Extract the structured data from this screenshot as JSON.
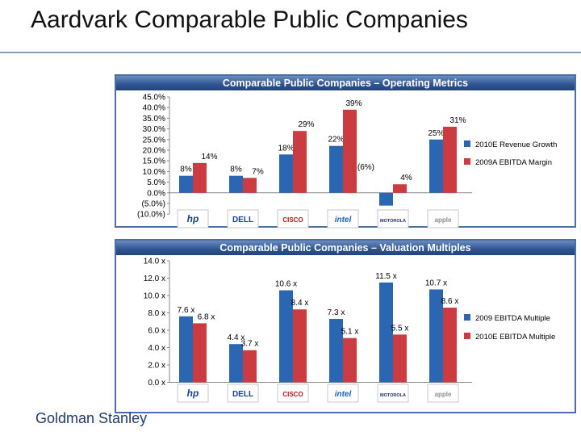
{
  "slide": {
    "title": "Aardvark Comparable Public Companies",
    "footer": "Goldman Stanley"
  },
  "colors": {
    "blue": "#2b66b2",
    "red": "#cc3b3f",
    "panel_border": "#4a6fa5"
  },
  "chart_data": [
    {
      "type": "bar",
      "title": "Comparable Public Companies – Operating Metrics",
      "categories": [
        "HP",
        "Dell",
        "Cisco",
        "Intel",
        "Motorola",
        "Apple"
      ],
      "category_logos": [
        "hp",
        "DELL",
        "CISCO",
        "intel",
        "MOTOROLA",
        "apple"
      ],
      "ylim": [
        -10,
        45
      ],
      "yticks": [
        "45.0%",
        "40.0%",
        "35.0%",
        "30.0%",
        "25.0%",
        "20.0%",
        "15.0%",
        "10.0%",
        "5.0%",
        "0.0%",
        "(5.0%)",
        "(10.0%)"
      ],
      "series": [
        {
          "name": "2010E Revenue Growth",
          "color": "#2b66b2",
          "values": [
            8,
            8,
            18,
            22,
            -6,
            25
          ],
          "labels": [
            "8%",
            "8%",
            "18%",
            "22%",
            "(6%)",
            "25%"
          ]
        },
        {
          "name": "2009A EBITDA Margin",
          "color": "#cc3b3f",
          "values": [
            14,
            7,
            29,
            39,
            4,
            31
          ],
          "labels": [
            "14%",
            "7%",
            "29%",
            "39%",
            "4%",
            "31%"
          ]
        }
      ],
      "legend": "right"
    },
    {
      "type": "bar",
      "title": "Comparable Public Companies – Valuation Multiples",
      "categories": [
        "HP",
        "Dell",
        "Cisco",
        "Intel",
        "Motorola",
        "Apple"
      ],
      "category_logos": [
        "hp",
        "DELL",
        "CISCO",
        "intel",
        "MOTOROLA",
        "apple"
      ],
      "ylim": [
        0,
        14
      ],
      "yticks": [
        "14.0 x",
        "12.0 x",
        "10.0 x",
        "8.0 x",
        "6.0 x",
        "4.0 x",
        "2.0 x",
        "0.0 x"
      ],
      "series": [
        {
          "name": "2009 EBITDA Multiple",
          "color": "#2b66b2",
          "values": [
            7.6,
            4.4,
            10.6,
            7.3,
            11.5,
            10.7
          ],
          "labels": [
            "7.6 x",
            "4.4 x",
            "10.6 x",
            "7.3 x",
            "11.5 x",
            "10.7 x"
          ]
        },
        {
          "name": "2010E EBITDA Multiple",
          "color": "#cc3b3f",
          "values": [
            6.8,
            3.7,
            8.4,
            5.1,
            5.5,
            8.6
          ],
          "labels": [
            "6.8 x",
            "3.7 x",
            "8.4 x",
            "5.1 x",
            "5.5 x",
            "8.6 x"
          ]
        }
      ],
      "legend": "right"
    }
  ]
}
